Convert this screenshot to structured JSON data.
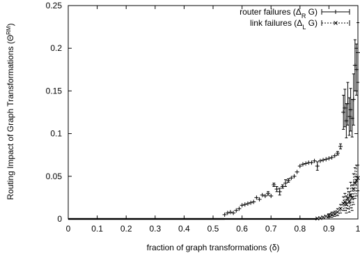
{
  "chart_data": {
    "type": "scatter",
    "title": "",
    "xlabel": "fraction of graph transformations (δ)",
    "ylabel": "Routing Impact of Graph Transformations (Θ",
    "ylabel_sup": "RM",
    "ylabel_close": ")",
    "xlim": [
      0,
      1
    ],
    "ylim": [
      0,
      0.25
    ],
    "xticks": [
      "0",
      "0.1",
      "0.2",
      "0.3",
      "0.4",
      "0.5",
      "0.6",
      "0.7",
      "0.8",
      "0.9",
      "1"
    ],
    "xtick_values": [
      0,
      0.1,
      0.2,
      0.3,
      0.4,
      0.5,
      0.6,
      0.7,
      0.8,
      0.9,
      1
    ],
    "yticks": [
      "0",
      "0.05",
      "0.1",
      "0.15",
      "0.2",
      "0.25"
    ],
    "ytick_values": [
      0,
      0.05,
      0.1,
      0.15,
      0.2,
      0.25
    ],
    "grid": false,
    "legend_position": "top-right",
    "series": [
      {
        "name_pre": "router failures (Δ",
        "name_sub": "R",
        "name_post": " G)",
        "marker": "plus",
        "line": "solid",
        "points": [
          [
            0.54,
            0.005,
            0.001
          ],
          [
            0.55,
            0.007,
            0.001
          ],
          [
            0.56,
            0.008,
            0.001
          ],
          [
            0.57,
            0.007,
            0.001
          ],
          [
            0.58,
            0.01,
            0.001
          ],
          [
            0.59,
            0.012,
            0.001
          ],
          [
            0.6,
            0.016,
            0.001
          ],
          [
            0.61,
            0.017,
            0.001
          ],
          [
            0.62,
            0.018,
            0.001
          ],
          [
            0.63,
            0.019,
            0.001
          ],
          [
            0.64,
            0.02,
            0.001
          ],
          [
            0.65,
            0.025,
            0.001
          ],
          [
            0.66,
            0.023,
            0.001
          ],
          [
            0.67,
            0.028,
            0.001
          ],
          [
            0.68,
            0.027,
            0.001
          ],
          [
            0.69,
            0.03,
            0.002
          ],
          [
            0.7,
            0.027,
            0.001
          ],
          [
            0.71,
            0.04,
            0.002
          ],
          [
            0.72,
            0.035,
            0.003
          ],
          [
            0.73,
            0.032,
            0.004
          ],
          [
            0.74,
            0.038,
            0.002
          ],
          [
            0.75,
            0.042,
            0.004
          ],
          [
            0.76,
            0.045,
            0.002
          ],
          [
            0.77,
            0.048,
            0.001
          ],
          [
            0.78,
            0.05,
            0.001
          ],
          [
            0.79,
            0.055,
            0.001
          ],
          [
            0.8,
            0.062,
            0.001
          ],
          [
            0.81,
            0.064,
            0.001
          ],
          [
            0.82,
            0.065,
            0.001
          ],
          [
            0.83,
            0.066,
            0.001
          ],
          [
            0.84,
            0.066,
            0.001
          ],
          [
            0.85,
            0.068,
            0.001
          ],
          [
            0.86,
            0.062,
            0.005
          ],
          [
            0.87,
            0.068,
            0.001
          ],
          [
            0.88,
            0.069,
            0.001
          ],
          [
            0.89,
            0.07,
            0.001
          ],
          [
            0.9,
            0.071,
            0.001
          ],
          [
            0.91,
            0.072,
            0.001
          ],
          [
            0.92,
            0.074,
            0.001
          ],
          [
            0.93,
            0.077,
            0.002
          ],
          [
            0.94,
            0.085,
            0.003
          ],
          [
            0.95,
            0.125,
            0.02
          ],
          [
            0.955,
            0.13,
            0.022
          ],
          [
            0.96,
            0.115,
            0.02
          ],
          [
            0.965,
            0.135,
            0.025
          ],
          [
            0.97,
            0.12,
            0.022
          ],
          [
            0.975,
            0.128,
            0.025
          ],
          [
            0.98,
            0.118,
            0.022
          ],
          [
            0.985,
            0.14,
            0.03
          ],
          [
            0.99,
            0.18,
            0.03
          ],
          [
            0.995,
            0.175,
            0.03
          ],
          [
            1.0,
            0.195,
            0.035
          ]
        ],
        "zero_range": [
          0,
          0.54
        ]
      },
      {
        "name_pre": "link failures (Δ",
        "name_sub": "L",
        "name_post": " G)",
        "marker": "cross",
        "line": "dashed",
        "points": [
          [
            0.86,
            0.0005,
            0.0005
          ],
          [
            0.87,
            0.001,
            0.0008
          ],
          [
            0.88,
            0.002,
            0.001
          ],
          [
            0.89,
            0.003,
            0.001
          ],
          [
            0.9,
            0.004,
            0.002
          ],
          [
            0.91,
            0.005,
            0.003
          ],
          [
            0.92,
            0.006,
            0.003
          ],
          [
            0.93,
            0.008,
            0.004
          ],
          [
            0.94,
            0.012,
            0.005
          ],
          [
            0.95,
            0.018,
            0.008
          ],
          [
            0.955,
            0.02,
            0.01
          ],
          [
            0.96,
            0.017,
            0.01
          ],
          [
            0.965,
            0.024,
            0.012
          ],
          [
            0.97,
            0.02,
            0.012
          ],
          [
            0.975,
            0.028,
            0.015
          ],
          [
            0.98,
            0.025,
            0.015
          ],
          [
            0.985,
            0.035,
            0.018
          ],
          [
            0.99,
            0.042,
            0.018
          ],
          [
            0.995,
            0.045,
            0.018
          ],
          [
            1.0,
            0.048,
            0.015
          ]
        ],
        "zero_range": [
          0,
          0.86
        ]
      }
    ]
  }
}
